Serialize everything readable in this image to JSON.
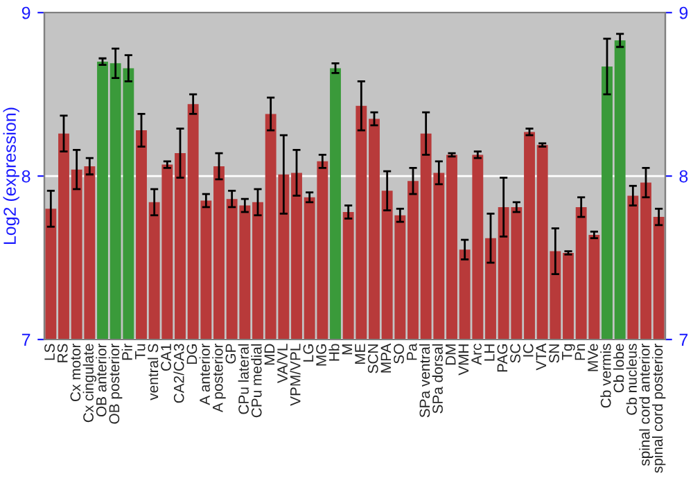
{
  "chart_data": {
    "type": "bar",
    "ylabel": "Log2 (expression)",
    "categories": [
      "LS",
      "RS",
      "Cx motor",
      "Cx cingulate",
      "OB anterior",
      "OB posterior",
      "Pir",
      "Tu",
      "ventral S",
      "CA1",
      "CA2/CA3",
      "DG",
      "A anterior",
      "A posterior",
      "GP",
      "CPu lateral",
      "CPu medial",
      "MD",
      "VA/VL",
      "VPM/VPL",
      "LG",
      "MG",
      "Hb",
      "M",
      "ME",
      "SCN",
      "MPA",
      "SO",
      "Pa",
      "SPa ventral",
      "SPa dorsal",
      "DM",
      "VMH",
      "Arc",
      "LH",
      "PAG",
      "SC",
      "IC",
      "VTA",
      "SN",
      "Tg",
      "Pn",
      "MVe",
      "Cb vermis",
      "Cb lobe",
      "Cb nucleus",
      "spinal cord anterior",
      "spinal cord posterior"
    ],
    "values": [
      7.8,
      8.26,
      8.04,
      8.06,
      8.7,
      8.69,
      8.66,
      8.28,
      7.84,
      8.07,
      8.14,
      8.44,
      7.85,
      8.06,
      7.86,
      7.82,
      7.84,
      8.38,
      8.01,
      8.02,
      7.87,
      8.09,
      8.66,
      7.78,
      8.43,
      8.35,
      7.91,
      7.76,
      7.97,
      8.26,
      8.02,
      8.13,
      7.55,
      8.13,
      7.62,
      7.81,
      7.81,
      8.27,
      8.19,
      7.54,
      7.53,
      7.81,
      7.64,
      8.67,
      8.83,
      7.88,
      7.96,
      7.75
    ],
    "errors": [
      0.11,
      0.11,
      0.12,
      0.05,
      0.02,
      0.09,
      0.08,
      0.1,
      0.08,
      0.02,
      0.15,
      0.06,
      0.04,
      0.08,
      0.05,
      0.04,
      0.08,
      0.1,
      0.24,
      0.14,
      0.03,
      0.04,
      0.03,
      0.04,
      0.15,
      0.04,
      0.12,
      0.04,
      0.08,
      0.13,
      0.07,
      0.01,
      0.06,
      0.02,
      0.15,
      0.18,
      0.03,
      0.02,
      0.01,
      0.14,
      0.01,
      0.06,
      0.02,
      0.17,
      0.04,
      0.06,
      0.09,
      0.05
    ],
    "colors": [
      "#b83a3a",
      "#b83a3a",
      "#b83a3a",
      "#b83a3a",
      "#3a9a3a",
      "#3a9a3a",
      "#3a9a3a",
      "#b83a3a",
      "#b83a3a",
      "#b83a3a",
      "#b83a3a",
      "#b83a3a",
      "#b83a3a",
      "#b83a3a",
      "#b83a3a",
      "#b83a3a",
      "#b83a3a",
      "#b83a3a",
      "#b83a3a",
      "#b83a3a",
      "#b83a3a",
      "#b83a3a",
      "#3a9a3a",
      "#b83a3a",
      "#b83a3a",
      "#b83a3a",
      "#b83a3a",
      "#b83a3a",
      "#b83a3a",
      "#b83a3a",
      "#b83a3a",
      "#b83a3a",
      "#b83a3a",
      "#b83a3a",
      "#b83a3a",
      "#b83a3a",
      "#b83a3a",
      "#b83a3a",
      "#b83a3a",
      "#b83a3a",
      "#b83a3a",
      "#b83a3a",
      "#b83a3a",
      "#3a9a3a",
      "#3a9a3a",
      "#b83a3a",
      "#b83a3a",
      "#b83a3a"
    ],
    "ylim": [
      7,
      9
    ],
    "yticks": [
      7,
      8,
      9
    ],
    "y2lim": [
      7,
      9
    ],
    "y2ticks": [
      7,
      8,
      9
    ],
    "grid": "y"
  }
}
